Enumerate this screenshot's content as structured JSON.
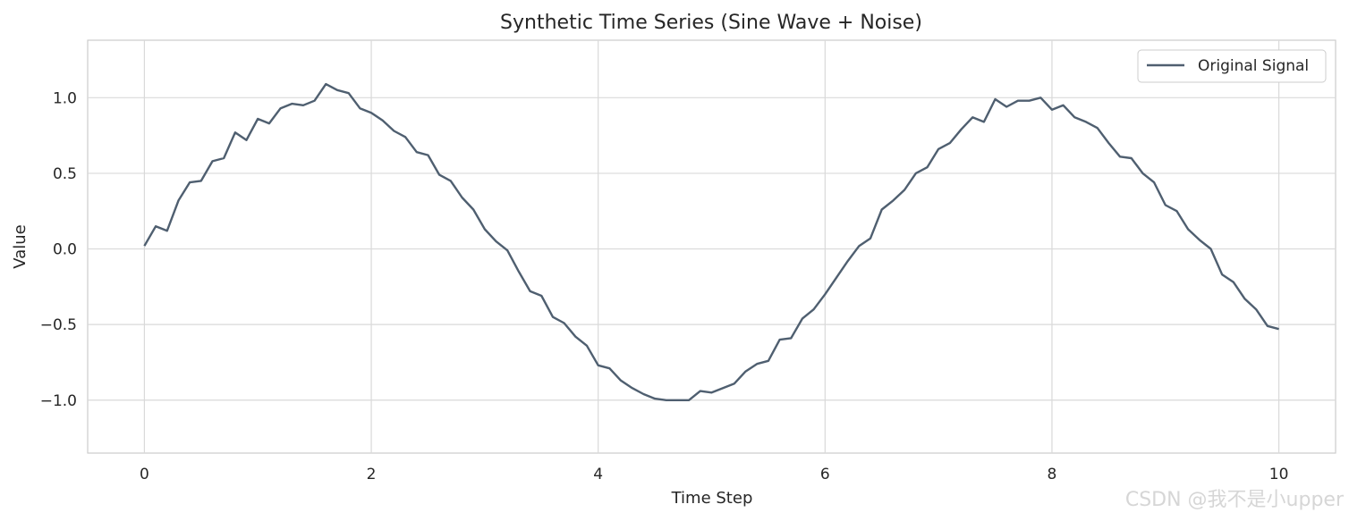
{
  "chart_data": {
    "type": "line",
    "title": "Synthetic Time Series (Sine Wave + Noise)",
    "xlabel": "Time Step",
    "ylabel": "Value",
    "xlim": [
      -0.5,
      10.5
    ],
    "ylim": [
      -1.35,
      1.38
    ],
    "xticks": [
      0,
      2,
      4,
      6,
      8,
      10
    ],
    "xtick_labels": [
      "0",
      "2",
      "4",
      "6",
      "8",
      "10"
    ],
    "yticks": [
      -1.0,
      -0.5,
      0.0,
      0.5,
      1.0
    ],
    "ytick_labels": [
      "−1.0",
      "−0.5",
      "0.0",
      "0.5",
      "1.0"
    ],
    "grid": true,
    "legend_position": "upper right",
    "series": [
      {
        "name": "Original Signal",
        "color": "#4f5f70",
        "x": [
          0.0,
          0.1,
          0.2,
          0.3,
          0.4,
          0.5,
          0.6,
          0.7,
          0.8,
          0.9,
          1.0,
          1.1,
          1.2,
          1.3,
          1.4,
          1.5,
          1.6,
          1.7,
          1.8,
          1.9,
          2.0,
          2.1,
          2.2,
          2.3,
          2.4,
          2.5,
          2.6,
          2.7,
          2.8,
          2.9,
          3.0,
          3.1,
          3.2,
          3.3,
          3.4,
          3.5,
          3.6,
          3.7,
          3.8,
          3.9,
          4.0,
          4.1,
          4.2,
          4.3,
          4.4,
          4.5,
          4.6,
          4.7,
          4.8,
          4.9,
          5.0,
          5.1,
          5.2,
          5.3,
          5.4,
          5.5,
          5.6,
          5.7,
          5.8,
          5.9,
          6.0,
          6.1,
          6.2,
          6.3,
          6.4,
          6.5,
          6.6,
          6.7,
          6.8,
          6.9,
          7.0,
          7.1,
          7.2,
          7.3,
          7.4,
          7.5,
          7.6,
          7.7,
          7.8,
          7.9,
          8.0,
          8.1,
          8.2,
          8.3,
          8.4,
          8.5,
          8.6,
          8.7,
          8.8,
          8.9,
          9.0,
          9.1,
          9.2,
          9.3,
          9.4,
          9.5,
          9.6,
          9.7,
          9.8,
          9.9,
          10.0
        ],
        "y": [
          0.02,
          0.15,
          0.12,
          0.32,
          0.44,
          0.45,
          0.58,
          0.6,
          0.77,
          0.72,
          0.86,
          0.83,
          0.93,
          0.96,
          0.95,
          0.98,
          1.09,
          1.05,
          1.03,
          0.93,
          0.9,
          0.85,
          0.78,
          0.74,
          0.64,
          0.62,
          0.49,
          0.45,
          0.34,
          0.26,
          0.13,
          0.05,
          -0.01,
          -0.15,
          -0.28,
          -0.31,
          -0.45,
          -0.49,
          -0.58,
          -0.64,
          -0.77,
          -0.79,
          -0.87,
          -0.92,
          -0.96,
          -0.99,
          -1.0,
          -1.0,
          -1.0,
          -0.94,
          -0.95,
          -0.92,
          -0.89,
          -0.81,
          -0.76,
          -0.74,
          -0.6,
          -0.59,
          -0.46,
          -0.4,
          -0.3,
          -0.19,
          -0.08,
          0.02,
          0.07,
          0.26,
          0.32,
          0.39,
          0.5,
          0.54,
          0.66,
          0.7,
          0.79,
          0.87,
          0.84,
          0.99,
          0.94,
          0.98,
          0.98,
          1.0,
          0.92,
          0.95,
          0.87,
          0.84,
          0.8,
          0.7,
          0.61,
          0.6,
          0.5,
          0.44,
          0.29,
          0.25,
          0.13,
          0.06,
          0.0,
          -0.17,
          -0.22,
          -0.33,
          -0.4,
          -0.51,
          -0.53
        ]
      }
    ]
  },
  "watermark": "CSDN @我不是小upper"
}
